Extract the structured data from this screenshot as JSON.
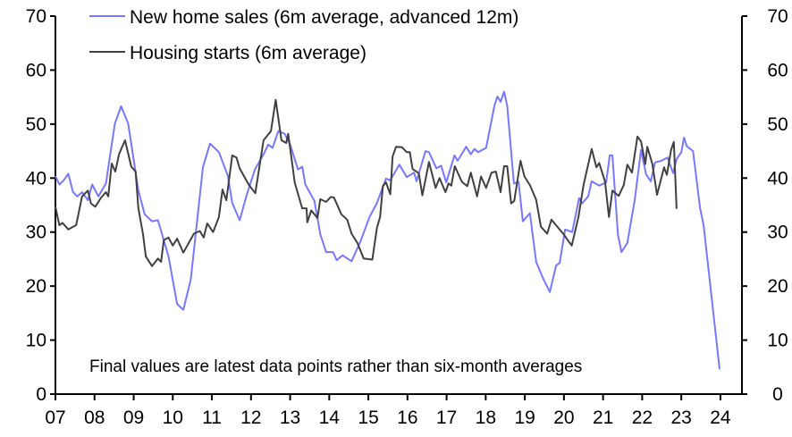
{
  "chart_data": {
    "type": "line",
    "title": "",
    "xlabel": "",
    "ylabel": "",
    "xlim": [
      2007,
      2024.5
    ],
    "ylim": [
      0,
      70
    ],
    "grid": false,
    "legend_position": "top-left",
    "x_tick_labels": [
      "07",
      "08",
      "09",
      "10",
      "11",
      "12",
      "13",
      "14",
      "15",
      "16",
      "17",
      "18",
      "19",
      "20",
      "21",
      "22",
      "23",
      "24"
    ],
    "y_tick_labels": [
      "0",
      "10",
      "20",
      "30",
      "40",
      "50",
      "60",
      "70"
    ],
    "annotation": "Final values are latest data points rather than six-month averages",
    "colors": {
      "new_home_sales": "#7878ff",
      "housing_starts": "#404040"
    },
    "series": [
      {
        "name": "New home sales (6m average, advanced 12m)",
        "x": [
          2007.0,
          2007.1,
          2007.2,
          2007.33,
          2007.45,
          2007.56,
          2007.68,
          2007.83,
          2007.94,
          2008.1,
          2008.29,
          2008.52,
          2008.68,
          2008.86,
          2009.12,
          2009.28,
          2009.47,
          2009.62,
          2009.89,
          2010.11,
          2010.27,
          2010.46,
          2010.77,
          2010.95,
          2011.18,
          2011.41,
          2011.52,
          2011.71,
          2011.9,
          2012.1,
          2012.32,
          2012.44,
          2012.55,
          2012.7,
          2012.86,
          2013.0,
          2013.2,
          2013.31,
          2013.39,
          2013.62,
          2013.77,
          2013.92,
          2014.1,
          2014.19,
          2014.34,
          2014.57,
          2014.8,
          2015.03,
          2015.22,
          2015.45,
          2015.56,
          2015.79,
          2015.98,
          2016.17,
          2016.23,
          2016.46,
          2016.55,
          2016.74,
          2016.86,
          2016.99,
          2017.2,
          2017.28,
          2017.5,
          2017.62,
          2017.71,
          2017.81,
          2018.01,
          2018.23,
          2018.3,
          2018.38,
          2018.47,
          2018.55,
          2018.72,
          2018.84,
          2018.95,
          2019.13,
          2019.29,
          2019.45,
          2019.64,
          2019.8,
          2019.89,
          2020.03,
          2020.21,
          2020.39,
          2020.46,
          2020.62,
          2020.71,
          2020.9,
          2021.08,
          2021.17,
          2021.24,
          2021.38,
          2021.47,
          2021.62,
          2021.81,
          2021.97,
          2022.1,
          2022.22,
          2022.33,
          2022.49,
          2022.65,
          2022.79,
          2022.88,
          2023.0,
          2023.07,
          2023.14,
          2023.3,
          2023.48,
          2023.57,
          2023.98
        ],
        "values": [
          40.4,
          38.8,
          39.5,
          40.8,
          37.4,
          36.6,
          37.4,
          35.9,
          38.8,
          36.6,
          39.0,
          50.1,
          53.3,
          50.1,
          37.7,
          33.3,
          32.0,
          32.2,
          25.5,
          16.7,
          15.6,
          21.2,
          42.0,
          46.4,
          44.8,
          40.4,
          35.4,
          32.2,
          37.1,
          41.6,
          44.4,
          46.2,
          45.6,
          48.7,
          48.2,
          46.2,
          41.6,
          42.1,
          38.8,
          35.8,
          29.6,
          26.3,
          26.3,
          24.8,
          25.7,
          24.6,
          28.3,
          32.8,
          35.4,
          39.9,
          39.6,
          42.5,
          40.2,
          41.0,
          39.4,
          45.0,
          44.8,
          41.8,
          42.3,
          39.2,
          44.2,
          43.2,
          45.8,
          44.4,
          45.4,
          44.8,
          45.6,
          53.6,
          55.1,
          54.1,
          56.0,
          53.4,
          39.0,
          39.3,
          32.0,
          33.5,
          24.5,
          21.7,
          18.9,
          23.8,
          24.3,
          30.5,
          30.0,
          36.3,
          35.3,
          36.6,
          39.4,
          38.6,
          39.2,
          44.2,
          44.2,
          29.5,
          26.3,
          28.0,
          36.0,
          45.2,
          40.7,
          39.4,
          42.9,
          43.2,
          43.8,
          40.9,
          43.5,
          44.8,
          47.5,
          45.9,
          45.0,
          34.4,
          31.3,
          4.6
        ]
      },
      {
        "name": "Housing starts (6m average)",
        "x": [
          2007.0,
          2007.1,
          2007.18,
          2007.33,
          2007.53,
          2007.68,
          2007.83,
          2007.91,
          2008.02,
          2008.17,
          2008.29,
          2008.35,
          2008.44,
          2008.53,
          2008.63,
          2008.78,
          2008.94,
          2009.05,
          2009.12,
          2009.24,
          2009.31,
          2009.47,
          2009.62,
          2009.7,
          2009.77,
          2009.89,
          2010.0,
          2010.11,
          2010.27,
          2010.54,
          2010.69,
          2010.79,
          2010.88,
          2011.03,
          2011.18,
          2011.27,
          2011.37,
          2011.52,
          2011.63,
          2011.71,
          2011.94,
          2012.11,
          2012.32,
          2012.51,
          2012.63,
          2012.78,
          2012.9,
          2012.95,
          2013.12,
          2013.31,
          2013.42,
          2013.44,
          2013.54,
          2013.7,
          2013.77,
          2013.92,
          2014.04,
          2014.12,
          2014.31,
          2014.46,
          2014.57,
          2014.72,
          2014.88,
          2015.1,
          2015.22,
          2015.3,
          2015.37,
          2015.45,
          2015.56,
          2015.62,
          2015.71,
          2015.86,
          2015.98,
          2016.06,
          2016.13,
          2016.29,
          2016.38,
          2016.55,
          2016.72,
          2016.82,
          2016.97,
          2017.05,
          2017.12,
          2017.21,
          2017.39,
          2017.53,
          2017.62,
          2017.78,
          2017.88,
          2018.01,
          2018.15,
          2018.26,
          2018.38,
          2018.47,
          2018.55,
          2018.65,
          2018.73,
          2018.89,
          2018.99,
          2019.13,
          2019.29,
          2019.41,
          2019.57,
          2019.68,
          2019.98,
          2020.2,
          2020.37,
          2020.5,
          2020.71,
          2020.83,
          2020.9,
          2021.05,
          2021.15,
          2021.24,
          2021.4,
          2021.53,
          2021.62,
          2021.74,
          2021.88,
          2021.97,
          2022.08,
          2022.13,
          2022.26,
          2022.38,
          2022.56,
          2022.63,
          2022.74,
          2022.81,
          2022.88
        ],
        "values": [
          34.7,
          31.3,
          31.7,
          30.5,
          31.3,
          36.6,
          37.7,
          35.3,
          34.7,
          36.4,
          37.4,
          36.6,
          42.7,
          41.2,
          44.5,
          47.0,
          42.1,
          41.2,
          34.4,
          29.6,
          25.5,
          23.7,
          25.1,
          24.5,
          28.5,
          29.0,
          27.5,
          28.8,
          26.2,
          29.7,
          30.2,
          29.0,
          31.6,
          30.0,
          32.8,
          37.9,
          35.9,
          44.2,
          43.8,
          41.8,
          38.8,
          37.2,
          47.0,
          48.7,
          54.5,
          47.0,
          46.5,
          48.2,
          39.1,
          34.4,
          34.4,
          31.8,
          34.0,
          32.6,
          36.1,
          35.6,
          36.5,
          36.4,
          33.3,
          32.3,
          29.7,
          28.0,
          25.1,
          24.9,
          30.8,
          32.8,
          38.5,
          39.2,
          37.0,
          44.0,
          45.8,
          45.7,
          44.8,
          44.8,
          41.7,
          40.9,
          36.8,
          43.0,
          38.2,
          40.0,
          37.4,
          39.0,
          38.6,
          42.2,
          39.3,
          38.5,
          41.0,
          36.6,
          40.3,
          38.2,
          41.0,
          41.2,
          37.4,
          42.2,
          42.2,
          35.3,
          35.8,
          43.2,
          40.3,
          38.7,
          36.0,
          31.0,
          29.7,
          32.3,
          29.7,
          27.5,
          32.8,
          38.7,
          45.4,
          42.0,
          42.8,
          39.4,
          32.8,
          37.7,
          36.7,
          38.7,
          42.5,
          41.0,
          47.7,
          46.8,
          42.6,
          45.8,
          42.6,
          36.9,
          42.0,
          40.6,
          45.3,
          46.7,
          34.3
        ]
      }
    ]
  }
}
